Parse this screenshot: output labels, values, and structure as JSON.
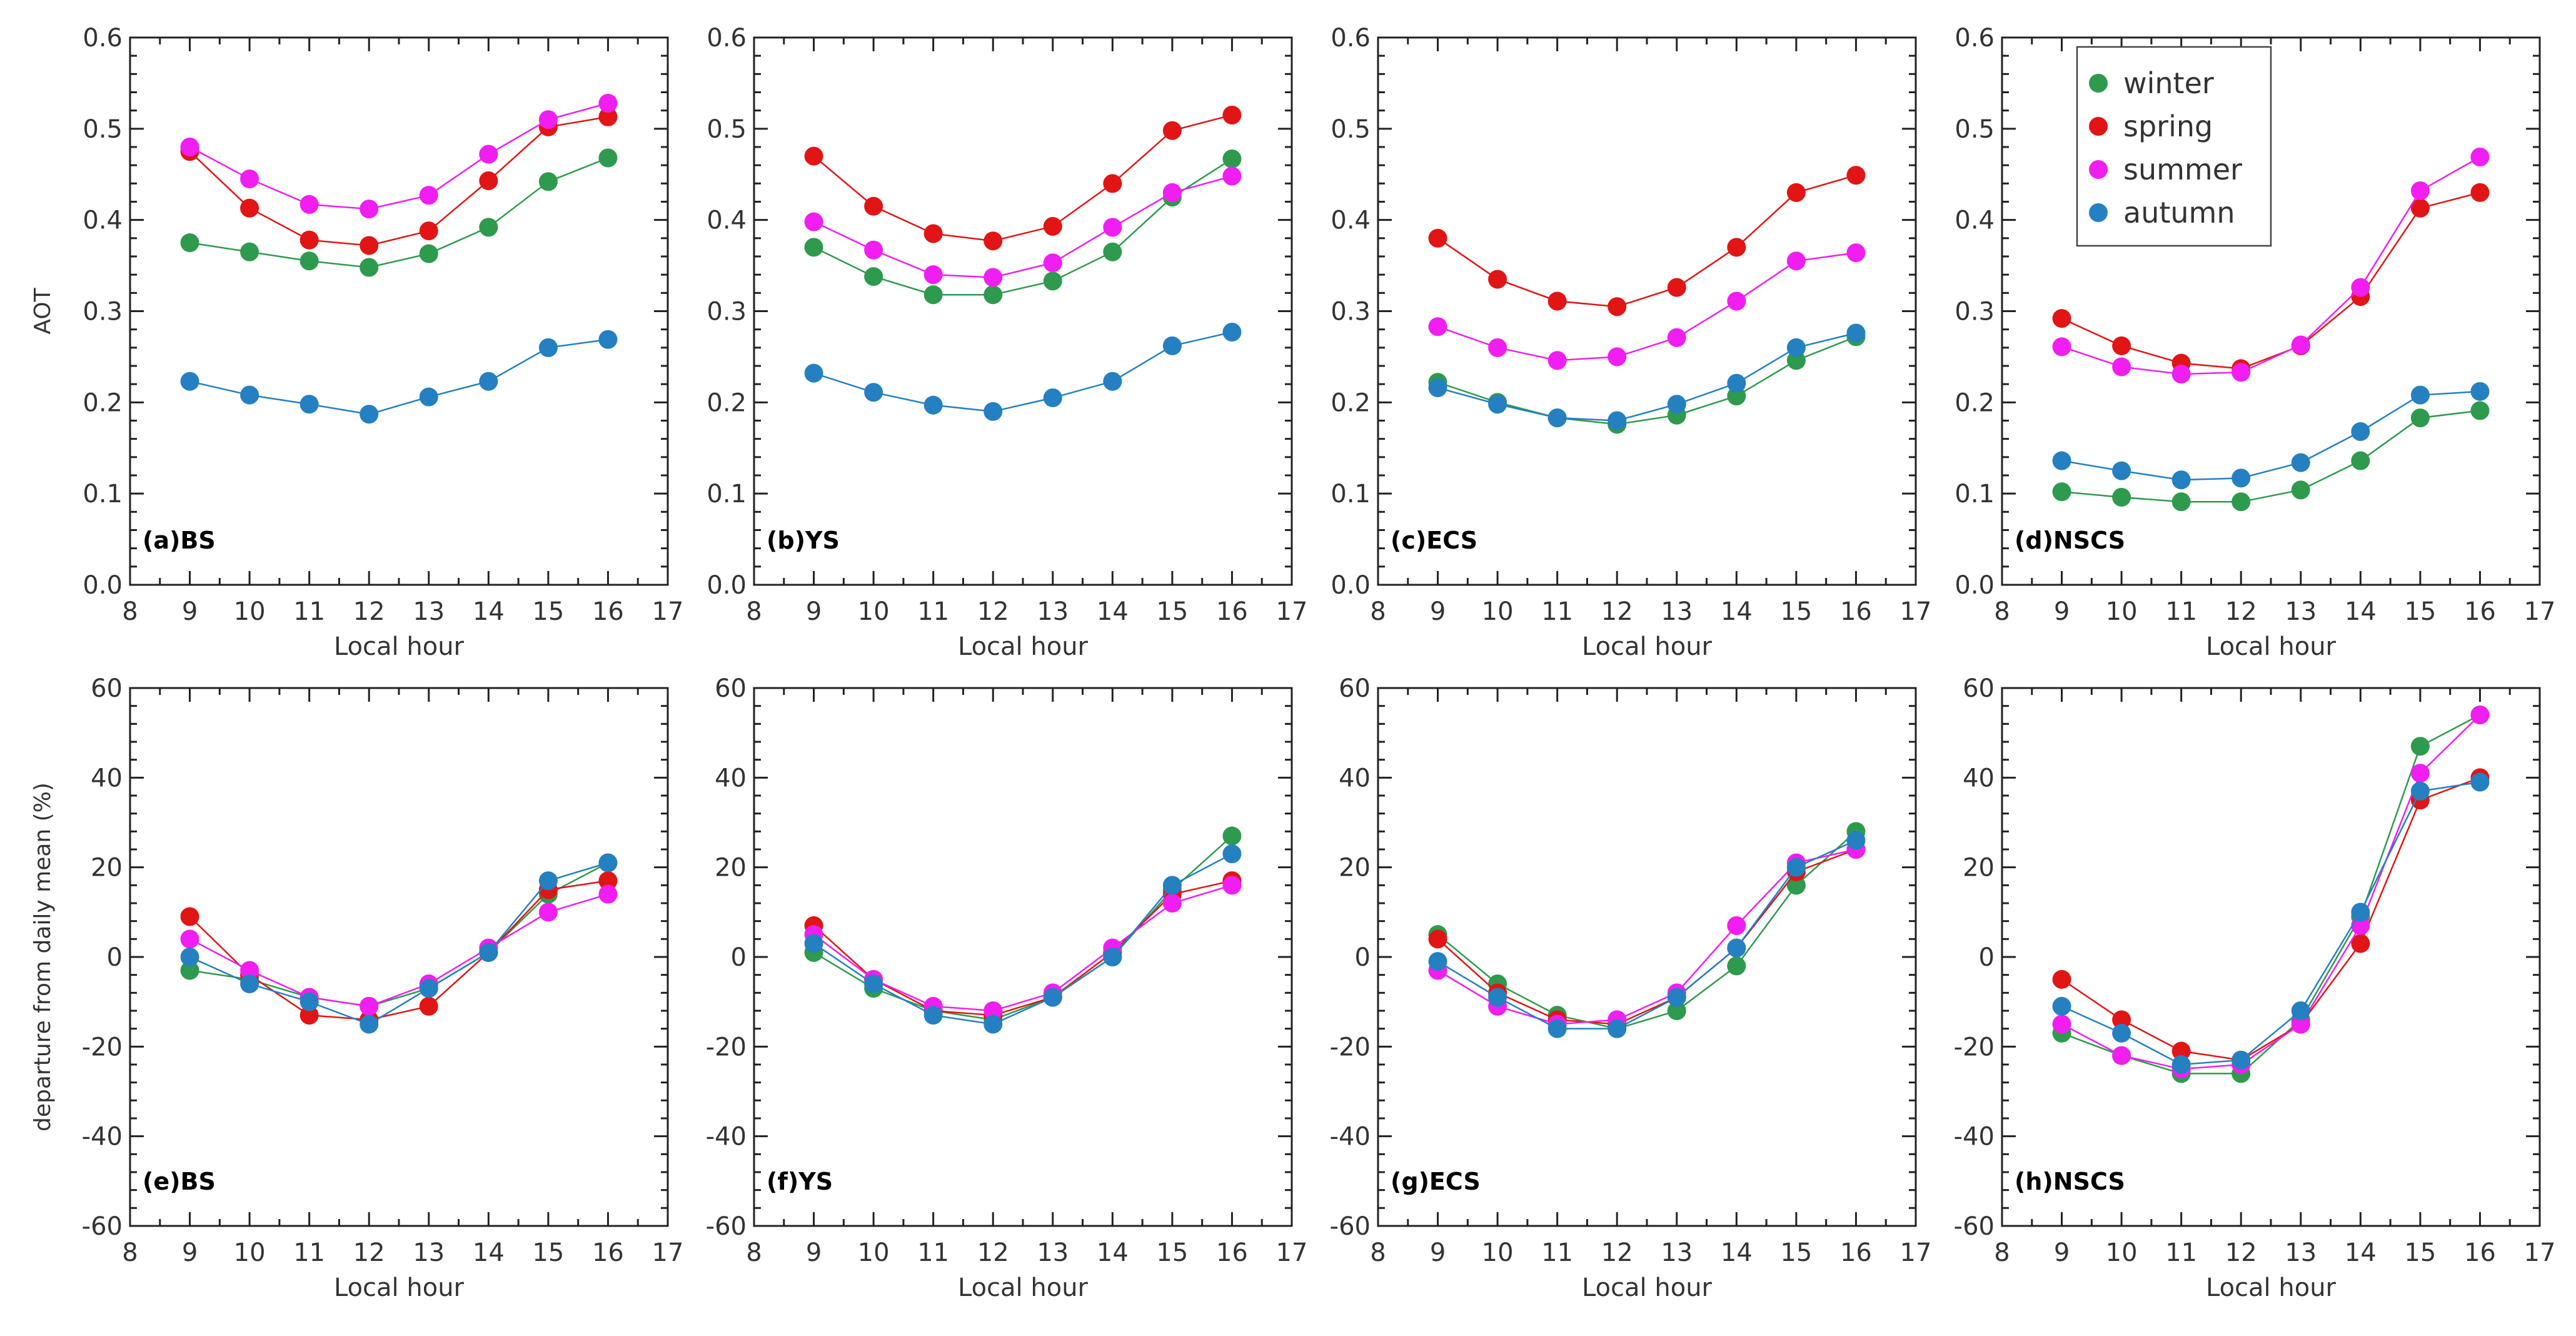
{
  "legend": [
    {
      "name": "winter",
      "color": "#2e9a4d"
    },
    {
      "name": "spring",
      "color": "#e11515"
    },
    {
      "name": "summer",
      "color": "#f01ef0"
    },
    {
      "name": "autumn",
      "color": "#2480c0"
    }
  ],
  "chart_data": [
    {
      "type": "line",
      "panel": "(a)BS",
      "xlabel": "Local hour",
      "ylabel": "AOT",
      "xlim": [
        8,
        17
      ],
      "ylim": [
        0.0,
        0.6
      ],
      "xticks": [
        "8",
        "9",
        "10",
        "11",
        "12",
        "13",
        "14",
        "15",
        "16",
        "17"
      ],
      "yticks": [
        "0.0",
        "0.1",
        "0.2",
        "0.3",
        "0.4",
        "0.5",
        "0.6"
      ],
      "x": [
        9,
        10,
        11,
        12,
        13,
        14,
        15,
        16
      ],
      "series": [
        {
          "name": "winter",
          "values": [
            0.375,
            0.365,
            0.355,
            0.348,
            0.363,
            0.392,
            0.442,
            0.468
          ]
        },
        {
          "name": "spring",
          "values": [
            0.475,
            0.413,
            0.378,
            0.372,
            0.388,
            0.443,
            0.502,
            0.513
          ]
        },
        {
          "name": "summer",
          "values": [
            0.48,
            0.445,
            0.417,
            0.412,
            0.427,
            0.472,
            0.51,
            0.528
          ]
        },
        {
          "name": "autumn",
          "values": [
            0.223,
            0.208,
            0.198,
            0.187,
            0.206,
            0.223,
            0.26,
            0.269
          ]
        }
      ]
    },
    {
      "type": "line",
      "panel": "(b)YS",
      "xlabel": "Local hour",
      "ylabel": "",
      "xlim": [
        8,
        17
      ],
      "ylim": [
        0.0,
        0.6
      ],
      "xticks": [
        "8",
        "9",
        "10",
        "11",
        "12",
        "13",
        "14",
        "15",
        "16",
        "17"
      ],
      "yticks": [
        "0.0",
        "0.1",
        "0.2",
        "0.3",
        "0.4",
        "0.5",
        "0.6"
      ],
      "x": [
        9,
        10,
        11,
        12,
        13,
        14,
        15,
        16
      ],
      "series": [
        {
          "name": "winter",
          "values": [
            0.37,
            0.338,
            0.318,
            0.318,
            0.333,
            0.365,
            0.425,
            0.467
          ]
        },
        {
          "name": "spring",
          "values": [
            0.47,
            0.415,
            0.385,
            0.377,
            0.393,
            0.44,
            0.498,
            0.515
          ]
        },
        {
          "name": "summer",
          "values": [
            0.398,
            0.367,
            0.34,
            0.337,
            0.353,
            0.392,
            0.43,
            0.448
          ]
        },
        {
          "name": "autumn",
          "values": [
            0.232,
            0.211,
            0.197,
            0.19,
            0.205,
            0.223,
            0.262,
            0.277
          ]
        }
      ]
    },
    {
      "type": "line",
      "panel": "(c)ECS",
      "xlabel": "Local hour",
      "ylabel": "",
      "xlim": [
        8,
        17
      ],
      "ylim": [
        0.0,
        0.6
      ],
      "xticks": [
        "8",
        "9",
        "10",
        "11",
        "12",
        "13",
        "14",
        "15",
        "16",
        "17"
      ],
      "yticks": [
        "0.0",
        "0.1",
        "0.2",
        "0.3",
        "0.4",
        "0.5",
        "0.6"
      ],
      "x": [
        9,
        10,
        11,
        12,
        13,
        14,
        15,
        16
      ],
      "series": [
        {
          "name": "winter",
          "values": [
            0.222,
            0.2,
            0.183,
            0.176,
            0.186,
            0.207,
            0.246,
            0.272
          ]
        },
        {
          "name": "spring",
          "values": [
            0.38,
            0.335,
            0.311,
            0.305,
            0.326,
            0.37,
            0.43,
            0.449
          ]
        },
        {
          "name": "summer",
          "values": [
            0.283,
            0.26,
            0.246,
            0.25,
            0.271,
            0.311,
            0.355,
            0.364
          ]
        },
        {
          "name": "autumn",
          "values": [
            0.216,
            0.198,
            0.183,
            0.18,
            0.198,
            0.221,
            0.26,
            0.276
          ]
        }
      ]
    },
    {
      "type": "line",
      "panel": "(d)NSCS",
      "xlabel": "Local hour",
      "ylabel": "",
      "xlim": [
        8,
        17
      ],
      "ylim": [
        0.0,
        0.6
      ],
      "xticks": [
        "8",
        "9",
        "10",
        "11",
        "12",
        "13",
        "14",
        "15",
        "16",
        "17"
      ],
      "yticks": [
        "0.0",
        "0.1",
        "0.2",
        "0.3",
        "0.4",
        "0.5",
        "0.6"
      ],
      "x": [
        9,
        10,
        11,
        12,
        13,
        14,
        15,
        16
      ],
      "series": [
        {
          "name": "winter",
          "values": [
            0.102,
            0.096,
            0.091,
            0.091,
            0.104,
            0.136,
            0.183,
            0.191
          ]
        },
        {
          "name": "spring",
          "values": [
            0.292,
            0.262,
            0.243,
            0.237,
            0.262,
            0.316,
            0.413,
            0.43
          ]
        },
        {
          "name": "summer",
          "values": [
            0.261,
            0.239,
            0.231,
            0.233,
            0.263,
            0.326,
            0.432,
            0.469
          ]
        },
        {
          "name": "autumn",
          "values": [
            0.136,
            0.125,
            0.115,
            0.117,
            0.134,
            0.168,
            0.208,
            0.212
          ]
        }
      ]
    },
    {
      "type": "line",
      "panel": "(e)BS",
      "xlabel": "Local hour",
      "ylabel": "departure from daily mean (%)",
      "xlim": [
        8,
        17
      ],
      "ylim": [
        -60,
        60
      ],
      "xticks": [
        "8",
        "9",
        "10",
        "11",
        "12",
        "13",
        "14",
        "15",
        "16",
        "17"
      ],
      "yticks": [
        "-60",
        "-40",
        "-20",
        "0",
        "20",
        "40",
        "60"
      ],
      "x": [
        9,
        10,
        11,
        12,
        13,
        14,
        15,
        16
      ],
      "series": [
        {
          "name": "winter",
          "values": [
            -3,
            -5,
            -9,
            -11,
            -7,
            1,
            14,
            21
          ]
        },
        {
          "name": "spring",
          "values": [
            9,
            -4,
            -13,
            -14,
            -11,
            1,
            15,
            17
          ]
        },
        {
          "name": "summer",
          "values": [
            4,
            -3,
            -9,
            -11,
            -6,
            2,
            10,
            14
          ]
        },
        {
          "name": "autumn",
          "values": [
            0,
            -6,
            -10,
            -15,
            -7,
            1,
            17,
            21
          ]
        }
      ]
    },
    {
      "type": "line",
      "panel": "(f)YS",
      "xlabel": "Local hour",
      "ylabel": "",
      "xlim": [
        8,
        17
      ],
      "ylim": [
        -60,
        60
      ],
      "xticks": [
        "8",
        "9",
        "10",
        "11",
        "12",
        "13",
        "14",
        "15",
        "16",
        "17"
      ],
      "yticks": [
        "-60",
        "-40",
        "-20",
        "0",
        "20",
        "40",
        "60"
      ],
      "x": [
        9,
        10,
        11,
        12,
        13,
        14,
        15,
        16
      ],
      "series": [
        {
          "name": "winter",
          "values": [
            1,
            -7,
            -12,
            -14,
            -9,
            0,
            15,
            27
          ]
        },
        {
          "name": "spring",
          "values": [
            7,
            -5,
            -12,
            -13,
            -9,
            1,
            14,
            17
          ]
        },
        {
          "name": "summer",
          "values": [
            5,
            -5,
            -11,
            -12,
            -8,
            2,
            12,
            16
          ]
        },
        {
          "name": "autumn",
          "values": [
            3,
            -6,
            -13,
            -15,
            -9,
            0,
            16,
            23
          ]
        }
      ]
    },
    {
      "type": "line",
      "panel": "(g)ECS",
      "xlabel": "Local hour",
      "ylabel": "",
      "xlim": [
        8,
        17
      ],
      "ylim": [
        -60,
        60
      ],
      "xticks": [
        "8",
        "9",
        "10",
        "11",
        "12",
        "13",
        "14",
        "15",
        "16",
        "17"
      ],
      "yticks": [
        "-60",
        "-40",
        "-20",
        "0",
        "20",
        "40",
        "60"
      ],
      "x": [
        9,
        10,
        11,
        12,
        13,
        14,
        15,
        16
      ],
      "series": [
        {
          "name": "winter",
          "values": [
            5,
            -6,
            -13,
            -16,
            -12,
            -2,
            16,
            28
          ]
        },
        {
          "name": "spring",
          "values": [
            4,
            -8,
            -14,
            -15,
            -9,
            2,
            19,
            24
          ]
        },
        {
          "name": "summer",
          "values": [
            -3,
            -11,
            -15,
            -14,
            -8,
            7,
            21,
            24
          ]
        },
        {
          "name": "autumn",
          "values": [
            -1,
            -9,
            -16,
            -16,
            -9,
            2,
            20,
            26
          ]
        }
      ]
    },
    {
      "type": "line",
      "panel": "(h)NSCS",
      "xlabel": "Local hour",
      "ylabel": "",
      "xlim": [
        8,
        17
      ],
      "ylim": [
        -60,
        60
      ],
      "xticks": [
        "8",
        "9",
        "10",
        "11",
        "12",
        "13",
        "14",
        "15",
        "16",
        "17"
      ],
      "yticks": [
        "-60",
        "-40",
        "-20",
        "0",
        "20",
        "40",
        "60"
      ],
      "x": [
        9,
        10,
        11,
        12,
        13,
        14,
        15,
        16
      ],
      "series": [
        {
          "name": "winter",
          "values": [
            -17,
            -22,
            -26,
            -26,
            -14,
            9,
            47,
            54
          ]
        },
        {
          "name": "spring",
          "values": [
            -5,
            -14,
            -21,
            -23,
            -15,
            3,
            35,
            40
          ]
        },
        {
          "name": "summer",
          "values": [
            -15,
            -22,
            -25,
            -24,
            -15,
            7,
            41,
            54
          ]
        },
        {
          "name": "autumn",
          "values": [
            -11,
            -17,
            -24,
            -23,
            -12,
            10,
            37,
            39
          ]
        }
      ]
    }
  ]
}
